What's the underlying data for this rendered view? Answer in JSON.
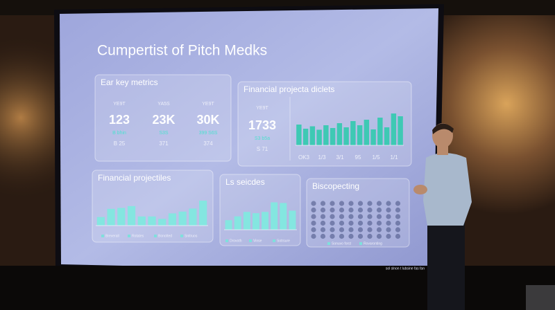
{
  "slide": {
    "title": "Cumpertist of Pitch Medks",
    "footer": "sol slnon t lubsine fas fan",
    "panels": [
      {
        "title": "Ear key metrics",
        "metrics": [
          {
            "label": "YE9T",
            "value": "123",
            "sub": "B bhin",
            "note": "B 25"
          },
          {
            "label": "YA5S",
            "value": "23K",
            "sub": "S3S",
            "note": "371"
          },
          {
            "label": "YE9T",
            "value": "30K",
            "sub": "399 S6S",
            "note": "374"
          }
        ]
      },
      {
        "title": "Financial projecta diclets",
        "metric": {
          "label": "YE9T",
          "value": "1733",
          "sub": "S3 b5a",
          "note": "S 71"
        },
        "bars": [
          60,
          48,
          55,
          45,
          58,
          50,
          64,
          52,
          70,
          58,
          74,
          46,
          80,
          52,
          92,
          84
        ],
        "categories": [
          "OK3",
          "1/3",
          "3/1",
          "95",
          "1/5",
          "1/1"
        ]
      },
      {
        "title": "Financial projectiles",
        "bars": [
          28,
          55,
          58,
          64,
          30,
          30,
          22,
          40,
          46,
          56,
          82
        ],
        "legend": [
          "Breverall",
          "Rotates",
          "Bonotted",
          "Snitruos"
        ]
      },
      {
        "title": "Ls seicdes",
        "bars": [
          30,
          42,
          56,
          52,
          56,
          86,
          84,
          60
        ],
        "legend": [
          "Drovoth",
          "Vinse",
          "Sotrsure"
        ]
      },
      {
        "title": "Biscopecting",
        "legend": [
          "Sonuvo forst",
          "Rovaronting"
        ]
      }
    ]
  }
}
